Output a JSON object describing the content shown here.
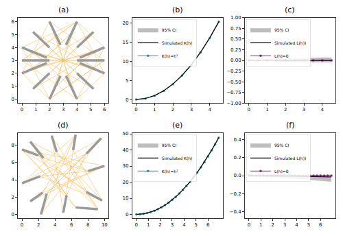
{
  "chart_data": [
    {
      "type": "network",
      "title": "(a)",
      "xlim": [
        -0.3,
        6.3
      ],
      "ylim": [
        -0.3,
        6.3
      ],
      "xticks": [
        0,
        1,
        2,
        3,
        4,
        5,
        6
      ],
      "yticks": [
        0,
        1,
        2,
        3,
        4,
        5,
        6
      ],
      "grid": false,
      "links": {
        "color": "#f5a623",
        "lines": [
          [
            0,
            4,
            6,
            2
          ],
          [
            0,
            2,
            6,
            4
          ],
          [
            0.9,
            3.6,
            5.1,
            2.4
          ],
          [
            0.9,
            2.4,
            5.1,
            3.6
          ],
          [
            2,
            6,
            4,
            0
          ],
          [
            4,
            6,
            2,
            0
          ],
          [
            2.4,
            5.1,
            3.6,
            0.9
          ],
          [
            3.6,
            5.1,
            2.4,
            0.9
          ],
          [
            0,
            3,
            6,
            3
          ],
          [
            1,
            3,
            5,
            3
          ],
          [
            0.8,
            5.2,
            5.2,
            0.8
          ],
          [
            5.2,
            5.2,
            0.8,
            0.8
          ],
          [
            1.4,
            4.6,
            4.6,
            1.4
          ],
          [
            4.6,
            4.6,
            1.4,
            1.4
          ],
          [
            0,
            4,
            4,
            6
          ],
          [
            0,
            2,
            2,
            0
          ],
          [
            6,
            4,
            4,
            6
          ],
          [
            6,
            2,
            4,
            0
          ],
          [
            0,
            4,
            2,
            0
          ],
          [
            0,
            2,
            2,
            6
          ],
          [
            6,
            4,
            4,
            0
          ],
          [
            6,
            2,
            4,
            6
          ],
          [
            0.8,
            5.2,
            6,
            2
          ],
          [
            5.2,
            5.2,
            0,
            2
          ],
          [
            0.8,
            0.8,
            6,
            4
          ],
          [
            5.2,
            0.8,
            0,
            4
          ],
          [
            2,
            6,
            6,
            3
          ],
          [
            4,
            6,
            0,
            3
          ],
          [
            2,
            0,
            6,
            3
          ],
          [
            4,
            0,
            0,
            3
          ],
          [
            2.4,
            5.1,
            5.1,
            2.4
          ],
          [
            3.6,
            5.1,
            0.9,
            2.4
          ],
          [
            2.4,
            0.9,
            5.1,
            3.6
          ],
          [
            3.6,
            0.9,
            0.9,
            3.6
          ],
          [
            1.5,
            3,
            3.6,
            5.1
          ],
          [
            4.5,
            3,
            2.4,
            0.9
          ],
          [
            0,
            3,
            4,
            6
          ],
          [
            6,
            3,
            2,
            0
          ]
        ]
      },
      "segments": {
        "color": "#9a9a9a",
        "lines": [
          [
            0,
            4,
            1.8,
            3.2
          ],
          [
            0,
            2,
            1.8,
            2.8
          ],
          [
            0,
            3,
            2,
            3
          ],
          [
            2,
            6,
            2.8,
            4.2
          ],
          [
            4,
            6,
            3.2,
            4.2
          ],
          [
            2,
            0,
            2.8,
            1.8
          ],
          [
            4,
            0,
            3.2,
            1.8
          ],
          [
            6,
            4,
            4.2,
            3.2
          ],
          [
            6,
            2,
            4.2,
            2.8
          ],
          [
            6,
            3,
            4,
            3
          ],
          [
            0.8,
            5.2,
            2,
            4
          ],
          [
            5.2,
            5.2,
            4,
            4
          ],
          [
            0.8,
            0.8,
            2,
            2
          ],
          [
            5.2,
            0.8,
            4,
            2
          ]
        ]
      }
    },
    {
      "type": "line",
      "title": "(b)",
      "xlim": [
        -0.22,
        4.72
      ],
      "ylim": [
        -0.9,
        21.3
      ],
      "xticks": [
        0,
        1,
        2,
        3,
        4
      ],
      "yticks": [
        0,
        5,
        10,
        15,
        20
      ],
      "grid": false,
      "legend": "upper left",
      "x": [
        0,
        0.5,
        1,
        1.5,
        2,
        2.5,
        3,
        3.5,
        4,
        4.5
      ],
      "series": [
        {
          "name": "K(h)=h²",
          "color": "#2a8a8a",
          "marker": "circle",
          "line_style": "solid",
          "values": [
            0,
            0.25,
            1,
            2.25,
            4,
            6.25,
            9,
            12.25,
            16,
            20.25
          ]
        },
        {
          "name": "Simulated K(h)",
          "color": "#000000",
          "line_style": "solid",
          "values": [
            0.05,
            0.3,
            1.05,
            2.3,
            4.05,
            6.3,
            9.05,
            12.3,
            16.05,
            20.3
          ]
        },
        {
          "name": "95% CI",
          "type": "band",
          "color": "#999999",
          "lower": [
            0,
            0.2,
            0.92,
            2.12,
            3.85,
            6.05,
            8.78,
            11.98,
            15.7,
            19.85
          ],
          "upper": [
            0.1,
            0.36,
            1.12,
            2.4,
            4.2,
            6.5,
            9.3,
            12.6,
            16.4,
            20.75
          ]
        }
      ]
    },
    {
      "type": "line",
      "title": "(c)",
      "xlim": [
        -0.22,
        4.72
      ],
      "ylim": [
        -1,
        1
      ],
      "xticks": [
        0,
        1,
        2,
        3,
        4
      ],
      "yticks": [
        {
          "value": -1,
          "label": "−1.00"
        },
        {
          "value": -0.75,
          "label": "−0.75"
        },
        {
          "value": -0.5,
          "label": "−0.50"
        },
        {
          "value": -0.25,
          "label": "−0.25"
        },
        {
          "value": 0,
          "label": "0.00"
        },
        0.25,
        {
          "value": 0.5,
          "label": "0.50"
        },
        0.75,
        {
          "value": 1,
          "label": "1.00"
        }
      ],
      "grid": false,
      "legend": "upper left",
      "x": [
        0,
        0.5,
        1,
        1.5,
        2,
        2.5,
        3,
        3.5,
        4,
        4.5
      ],
      "series": [
        {
          "name": "L(h)=0",
          "color": "#8b1a8b",
          "marker": "circle",
          "line_style": "solid",
          "values": [
            0,
            0,
            0,
            0,
            0,
            0,
            0,
            0,
            0,
            0
          ]
        },
        {
          "name": "Simulated L(h))",
          "color": "#000000",
          "line_style": "solid",
          "values": [
            0,
            0.005,
            0.01,
            0,
            -0.01,
            -0.005,
            0,
            0.01,
            0.005,
            0
          ]
        },
        {
          "name": "95% CI",
          "type": "band",
          "color": "#999999",
          "lower": [
            0,
            -0.01,
            -0.02,
            -0.03,
            -0.035,
            -0.04,
            -0.045,
            -0.05,
            -0.05,
            -0.05
          ],
          "upper": [
            0,
            0.01,
            0.02,
            0.03,
            0.04,
            0.05,
            0.06,
            0.065,
            0.07,
            0.07
          ]
        }
      ]
    },
    {
      "type": "network",
      "title": "(d)",
      "xlim": [
        -0.5,
        10.5
      ],
      "ylim": [
        -0.45,
        9.4
      ],
      "xticks": [
        0,
        2,
        4,
        6,
        8,
        10
      ],
      "yticks": [
        0,
        2,
        4,
        6,
        8
      ],
      "grid": false,
      "links": {
        "color": "#f5a623",
        "lines": [
          [
            0,
            7.5,
            10,
            5.6
          ],
          [
            0,
            3.6,
            9.6,
            8.8
          ],
          [
            2,
            6.8,
            7.8,
            2.6
          ],
          [
            2.2,
            4.4,
            8,
            5
          ],
          [
            1,
            8.4,
            9.2,
            0.6
          ],
          [
            3.6,
            9.1,
            5,
            0.2
          ],
          [
            4.2,
            7.2,
            9.7,
            1.6
          ],
          [
            2.3,
            0,
            9.6,
            8.8
          ],
          [
            3,
            2.4,
            7.8,
            7
          ],
          [
            1,
            1.5,
            10,
            5.6
          ],
          [
            2.5,
            2.5,
            6.5,
            9.2
          ],
          [
            7.8,
            7,
            2.2,
            4.4
          ],
          [
            8,
            5,
            1,
            8.4
          ],
          [
            9.7,
            1.6,
            0,
            7.5
          ],
          [
            9.2,
            0.6,
            3.6,
            9.1
          ],
          [
            6.5,
            0.8,
            2,
            6.8
          ],
          [
            5,
            0.2,
            6.2,
            7.4
          ],
          [
            5.4,
            2.2,
            0,
            7.5
          ],
          [
            6.5,
            9.2,
            2.3,
            0
          ],
          [
            6.2,
            7.4,
            9.7,
            1.6
          ],
          [
            0,
            7.5,
            6.5,
            0.8
          ],
          [
            2.6,
            6.5,
            8,
            5
          ],
          [
            4.2,
            7.2,
            9.2,
            0.6
          ],
          [
            1,
            1.5,
            7.8,
            7
          ],
          [
            3,
            2.4,
            9.6,
            8.8
          ],
          [
            0,
            3.6,
            6.5,
            9.2
          ],
          [
            2.5,
            2.5,
            10,
            5.6
          ],
          [
            5.4,
            2.2,
            7.8,
            7
          ],
          [
            2.2,
            4.4,
            9.7,
            1.6
          ],
          [
            1,
            8.4,
            5.4,
            2.2
          ]
        ]
      },
      "segments": {
        "color": "#9a9a9a",
        "lines": [
          [
            0,
            7.5,
            2,
            6.8
          ],
          [
            0,
            3.6,
            2.2,
            4.4
          ],
          [
            1,
            8.4,
            2.6,
            6.5
          ],
          [
            3.6,
            9.1,
            4.2,
            7.2
          ],
          [
            2.3,
            0,
            3,
            2.4
          ],
          [
            1,
            1.5,
            2.5,
            2.5
          ],
          [
            9.6,
            8.8,
            7.8,
            7
          ],
          [
            10,
            5.6,
            8,
            5
          ],
          [
            9.7,
            1.6,
            7.8,
            2.6
          ],
          [
            9.2,
            0.6,
            6.5,
            0.8
          ],
          [
            5,
            0.2,
            5.4,
            2.2
          ],
          [
            6.5,
            9.2,
            6.2,
            7.4
          ]
        ]
      }
    },
    {
      "type": "line",
      "title": "(e)",
      "xlim": [
        -0.35,
        7.25
      ],
      "ylim": [
        -2.4,
        50.5
      ],
      "xticks": [
        0,
        1,
        2,
        3,
        4,
        5,
        6
      ],
      "yticks": [
        0,
        10,
        20,
        30,
        40,
        50
      ],
      "grid": false,
      "legend": "upper left",
      "x": [
        0,
        0.3,
        0.6,
        0.9,
        1.2,
        1.5,
        1.8,
        2.1,
        2.4,
        2.7,
        3,
        3.3,
        3.6,
        3.9,
        4.2,
        4.5,
        4.8,
        5.1,
        5.4,
        5.7,
        6,
        6.3,
        6.6,
        6.9
      ],
      "series": [
        {
          "name": "K(h)=h²",
          "color": "#2a8a8a",
          "marker": "circle",
          "line_style": "solid",
          "values": [
            0,
            0.09,
            0.36,
            0.81,
            1.44,
            2.25,
            3.24,
            4.41,
            5.76,
            7.29,
            9,
            10.89,
            12.96,
            15.21,
            17.64,
            20.25,
            23.04,
            26.01,
            29.16,
            32.49,
            36,
            39.69,
            43.56,
            47.61
          ]
        },
        {
          "name": "Simulated K(h)",
          "color": "#000000",
          "line_style": "solid",
          "values": [
            0,
            0.1,
            0.38,
            0.83,
            1.46,
            2.27,
            3.27,
            4.44,
            5.79,
            7.33,
            9.04,
            10.93,
            13.0,
            15.26,
            17.7,
            20.3,
            23.1,
            26.08,
            29.22,
            32.56,
            36.08,
            39.77,
            43.64,
            47.7
          ]
        },
        {
          "name": "95% CI",
          "type": "band",
          "color": "#999999",
          "lower": [
            0,
            0.05,
            0.3,
            0.72,
            1.32,
            2.1,
            3.05,
            4.2,
            5.5,
            7.0,
            8.68,
            10.55,
            12.6,
            14.82,
            17.2,
            19.78,
            22.54,
            25.48,
            28.6,
            31.9,
            35.38,
            39.03,
            42.86,
            46.86
          ],
          "upper": [
            0,
            0.14,
            0.44,
            0.92,
            1.58,
            2.42,
            3.46,
            4.66,
            6.06,
            7.62,
            9.38,
            11.3,
            13.4,
            15.7,
            18.18,
            20.82,
            23.64,
            26.64,
            29.82,
            33.18,
            36.72,
            40.44,
            44.34,
            48.42
          ]
        }
      ]
    },
    {
      "type": "line",
      "title": "(f)",
      "xlim": [
        -0.35,
        7.25
      ],
      "ylim": [
        -0.47,
        0.47
      ],
      "xticks": [
        0,
        1,
        2,
        3,
        4,
        5,
        6
      ],
      "yticks": [
        {
          "value": -0.4,
          "label": "−0.4"
        },
        {
          "value": -0.2,
          "label": "−0.2"
        },
        {
          "value": 0,
          "label": "0.0"
        },
        0.2,
        0.4
      ],
      "grid": false,
      "legend": "upper left",
      "x": [
        0,
        0.3,
        0.6,
        0.9,
        1.2,
        1.5,
        1.8,
        2.1,
        2.4,
        2.7,
        3,
        3.3,
        3.6,
        3.9,
        4.2,
        4.5,
        4.8,
        5.1,
        5.4,
        5.7,
        6,
        6.3,
        6.6,
        6.9
      ],
      "series": [
        {
          "name": "L(h)=0",
          "color": "#8b1a8b",
          "marker": "circle",
          "line_style": "solid",
          "values": [
            0,
            0,
            0,
            0,
            0,
            0,
            0,
            0,
            0,
            0,
            0,
            0,
            0,
            0,
            0,
            0,
            0,
            0,
            0,
            0,
            0,
            0,
            0,
            0
          ]
        },
        {
          "name": "Simulated L(h))",
          "color": "#000000",
          "line_style": "solid",
          "values": [
            0,
            0,
            0.002,
            0.003,
            0.002,
            0,
            -0.002,
            -0.003,
            -0.004,
            -0.005,
            -0.006,
            -0.006,
            -0.007,
            -0.008,
            -0.008,
            -0.009,
            -0.01,
            -0.01,
            -0.011,
            -0.012,
            -0.012,
            -0.013,
            -0.014,
            -0.015
          ]
        },
        {
          "name": "95% CI",
          "type": "band",
          "color": "#999999",
          "lower": [
            0,
            -0.005,
            -0.008,
            -0.01,
            -0.012,
            -0.014,
            -0.016,
            -0.018,
            -0.02,
            -0.022,
            -0.025,
            -0.028,
            -0.03,
            -0.033,
            -0.036,
            -0.04,
            -0.043,
            -0.046,
            -0.05,
            -0.053,
            -0.056,
            -0.06,
            -0.064,
            -0.068
          ],
          "upper": [
            0,
            0.005,
            0.008,
            0.01,
            0.011,
            0.012,
            0.012,
            0.012,
            0.012,
            0.011,
            0.01,
            0.01,
            0.009,
            0.008,
            0.008,
            0.007,
            0.006,
            0.006,
            0.005,
            0.004,
            0.004,
            0.003,
            0.002,
            0.002
          ]
        }
      ]
    }
  ]
}
